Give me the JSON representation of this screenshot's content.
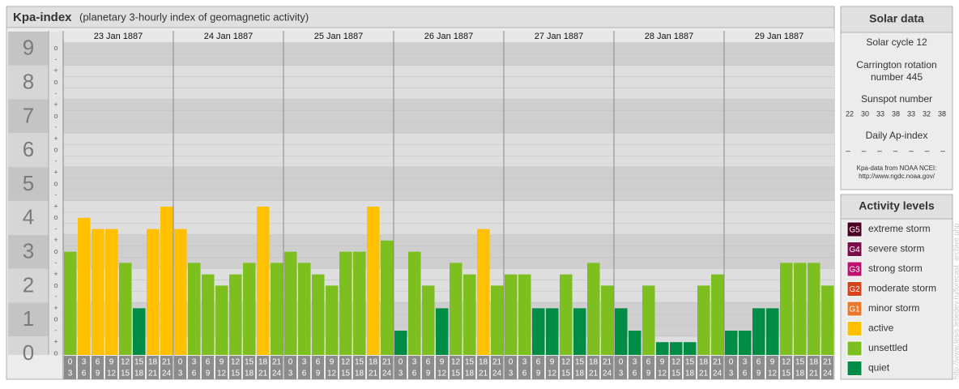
{
  "header": {
    "title": "Kpa-index",
    "subtitle": "(planetary 3-hourly index of geomagnetic activity)"
  },
  "chart_data": {
    "type": "bar",
    "days": [
      "23 Jan 1887",
      "24 Jan 1887",
      "25 Jan 1887",
      "26 Jan 1887",
      "27 Jan 1887",
      "28 Jan 1887",
      "29 Jan 1887"
    ],
    "time_from": [
      "0",
      "3",
      "6",
      "9",
      "12",
      "15",
      "18",
      "21"
    ],
    "time_to": [
      "3",
      "6",
      "9",
      "12",
      "15",
      "18",
      "21",
      "24"
    ],
    "values": [
      3,
      4,
      3.67,
      3.67,
      2.67,
      1.33,
      3.67,
      4.33,
      3.67,
      2.67,
      2.33,
      2,
      2.33,
      2.67,
      4.33,
      2.67,
      3,
      2.67,
      2.33,
      2,
      3,
      3,
      4.33,
      3.33,
      0.67,
      3,
      2,
      1.33,
      2.67,
      2.33,
      3.67,
      2,
      2.33,
      2.33,
      1.33,
      1.33,
      2.33,
      1.33,
      2.67,
      2,
      1.33,
      0.67,
      2,
      0.33,
      0.33,
      0.33,
      2,
      2.33,
      0.67,
      0.67,
      1.33,
      1.33,
      2.67,
      2.67,
      2.67,
      2
    ],
    "colors": [
      "#7dbf1f",
      "#ffc000",
      "#ffc000",
      "#ffc000",
      "#7dbf1f",
      "#008c45",
      "#ffc000",
      "#ffc000",
      "#ffc000",
      "#7dbf1f",
      "#7dbf1f",
      "#7dbf1f",
      "#7dbf1f",
      "#7dbf1f",
      "#ffc000",
      "#7dbf1f",
      "#7dbf1f",
      "#7dbf1f",
      "#7dbf1f",
      "#7dbf1f",
      "#7dbf1f",
      "#7dbf1f",
      "#ffc000",
      "#7dbf1f",
      "#008c45",
      "#7dbf1f",
      "#7dbf1f",
      "#008c45",
      "#7dbf1f",
      "#7dbf1f",
      "#ffc000",
      "#7dbf1f",
      "#7dbf1f",
      "#7dbf1f",
      "#008c45",
      "#008c45",
      "#7dbf1f",
      "#008c45",
      "#7dbf1f",
      "#7dbf1f",
      "#008c45",
      "#008c45",
      "#7dbf1f",
      "#008c45",
      "#008c45",
      "#008c45",
      "#7dbf1f",
      "#7dbf1f",
      "#008c45",
      "#008c45",
      "#008c45",
      "#008c45",
      "#7dbf1f",
      "#7dbf1f",
      "#7dbf1f",
      "#7dbf1f"
    ],
    "ylim": [
      0,
      9.5
    ],
    "yticks": [
      0,
      1,
      2,
      3,
      4,
      5,
      6,
      7,
      8,
      9
    ],
    "yminorticks": [
      {
        "value": 9,
        "label": "o"
      },
      {
        "value": 8.67,
        "label": "-"
      },
      {
        "value": 8.33,
        "label": "+"
      },
      {
        "value": 8,
        "label": "o"
      },
      {
        "value": 7.67,
        "label": "-"
      },
      {
        "value": 7.33,
        "label": "+"
      },
      {
        "value": 7,
        "label": "o"
      },
      {
        "value": 6.67,
        "label": "-"
      },
      {
        "value": 6.33,
        "label": "+"
      },
      {
        "value": 6,
        "label": "o"
      },
      {
        "value": 5.67,
        "label": "-"
      },
      {
        "value": 5.33,
        "label": "+"
      },
      {
        "value": 5,
        "label": "o"
      },
      {
        "value": 4.67,
        "label": "-"
      },
      {
        "value": 4.33,
        "label": "+"
      },
      {
        "value": 4,
        "label": "o"
      },
      {
        "value": 3.67,
        "label": "-"
      },
      {
        "value": 3.33,
        "label": "+"
      },
      {
        "value": 3,
        "label": "o"
      },
      {
        "value": 2.67,
        "label": "-"
      },
      {
        "value": 2.33,
        "label": "+"
      },
      {
        "value": 2,
        "label": "o"
      },
      {
        "value": 1.67,
        "label": "-"
      },
      {
        "value": 1.33,
        "label": "+"
      },
      {
        "value": 1,
        "label": "o"
      },
      {
        "value": 0.67,
        "label": "-"
      },
      {
        "value": 0.33,
        "label": "+"
      },
      {
        "value": 0,
        "label": "o"
      }
    ],
    "grid": true
  },
  "solar_data": {
    "title": "Solar data",
    "cycle": "Solar cycle 12",
    "carrington": [
      "Carrington rotation",
      "number 445"
    ],
    "sunspot_title": "Sunspot number",
    "sunspots": [
      22,
      30,
      33,
      38,
      33,
      32,
      38
    ],
    "ap_title": "Daily Ap-index",
    "ap": [
      "–",
      "–",
      "–",
      "–",
      "–",
      "–",
      "–"
    ],
    "source": [
      "Kpa-data from NOAA NCEI:",
      "http://www.ngdc.noaa.gov/"
    ]
  },
  "activity_levels": {
    "title": "Activity levels",
    "items": [
      {
        "code": "G5",
        "name": "extreme storm",
        "color": "#4a0022"
      },
      {
        "code": "G4",
        "name": "severe storm",
        "color": "#7a0c4a"
      },
      {
        "code": "G3",
        "name": "strong storm",
        "color": "#c0116c"
      },
      {
        "code": "G2",
        "name": "moderate storm",
        "color": "#d9411a"
      },
      {
        "code": "G1",
        "name": "minor storm",
        "color": "#e8782a"
      },
      {
        "name": "active",
        "color": "#ffc000"
      },
      {
        "name": "unsettled",
        "color": "#7dbf1f"
      },
      {
        "name": "quiet",
        "color": "#008c45"
      }
    ]
  },
  "watermark": "http://www.tesis.lebedev.ru/forecast_archive.php"
}
